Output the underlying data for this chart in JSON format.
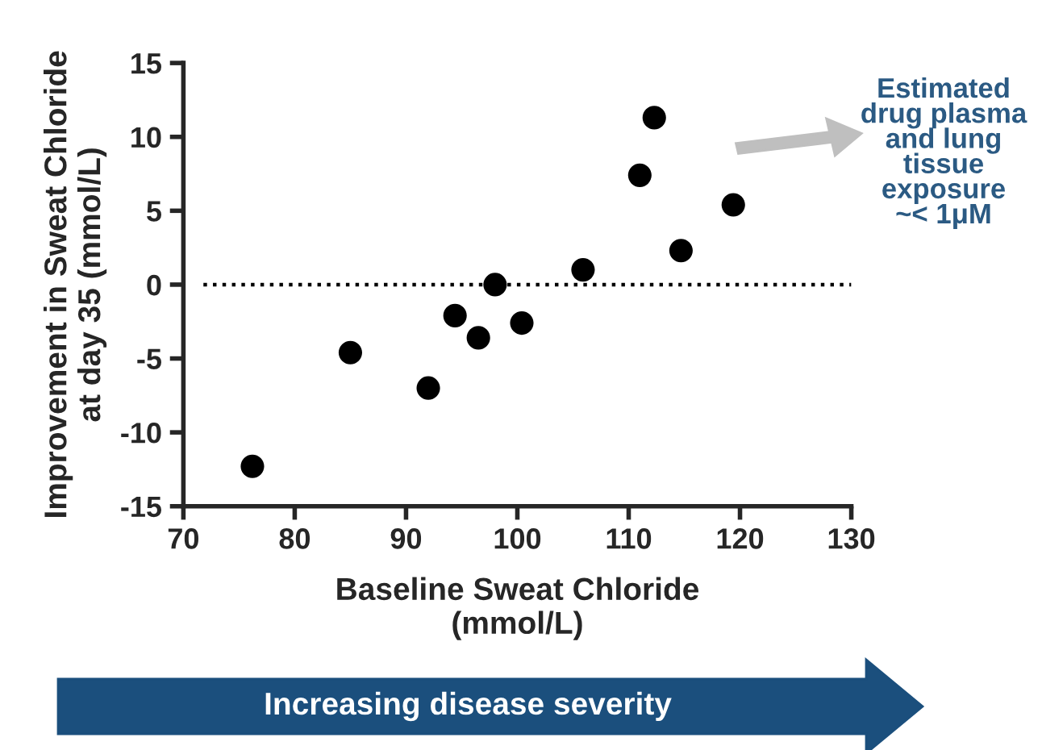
{
  "chart_data": {
    "type": "scatter",
    "xlabel": "Baseline Sweat Chloride\n(mmol/L)",
    "ylabel": "Improvement in Sweat Chloride\nat day 35 (mmol/L)",
    "x": [
      76.2,
      85.0,
      92.0,
      94.4,
      96.5,
      98.0,
      100.4,
      105.9,
      111.0,
      112.3,
      114.7,
      119.4
    ],
    "series": [
      {
        "color": "#000000",
        "values": [
          -12.3,
          -4.6,
          -7.0,
          -2.1,
          -3.6,
          0.0,
          -2.6,
          1.0,
          7.4,
          11.3,
          2.3,
          5.4
        ]
      }
    ],
    "xlim": [
      70,
      130
    ],
    "xticks": [
      70,
      80,
      90,
      100,
      110,
      120,
      130
    ],
    "ylim": [
      -15,
      15
    ],
    "yticks": [
      -15,
      -10,
      -5,
      0,
      5,
      10,
      15
    ],
    "ref_lines": [
      {
        "axis": "y",
        "value": 0,
        "label": null,
        "color": "#000000",
        "line_style": "dotted"
      }
    ],
    "annotations": [
      "Estimated\ndrug plasma\nand lung\ntissue\nexposure\n~< 1μM",
      "Increasing disease severity"
    ],
    "marker": "circle",
    "grid": false
  }
}
